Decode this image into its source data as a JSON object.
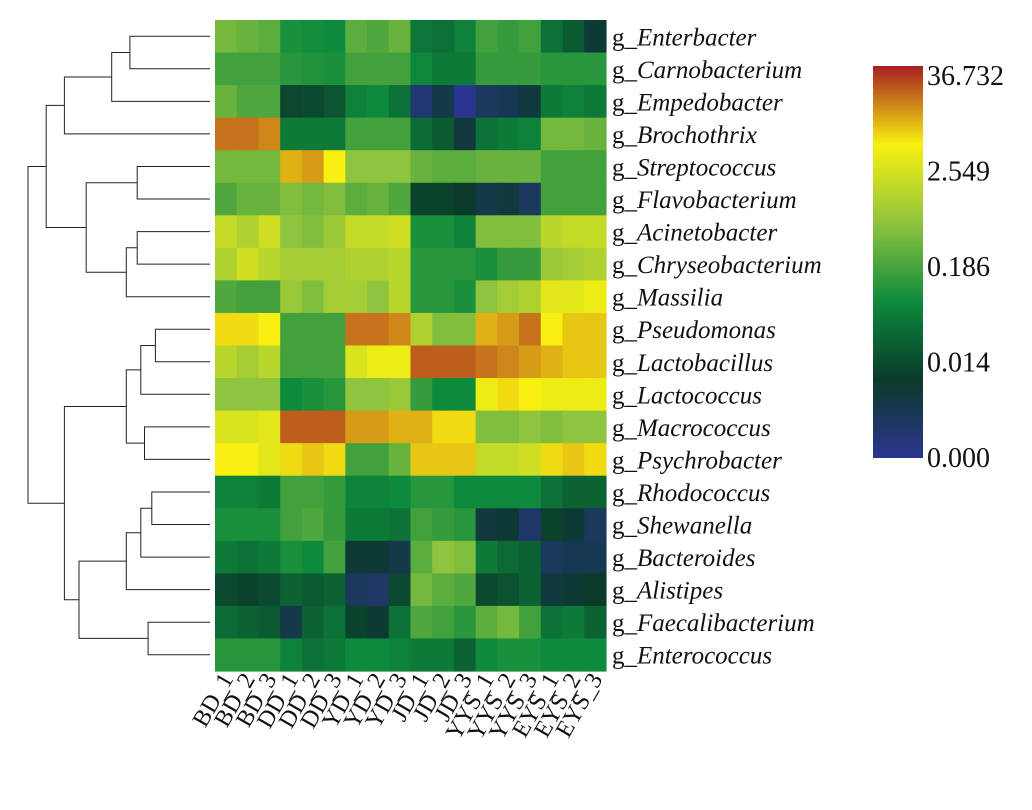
{
  "chart_data": {
    "type": "heatmap",
    "title": "",
    "xlabel": "",
    "ylabel": "",
    "columns": [
      "BD_1",
      "BD_2",
      "BD_3",
      "DD_1",
      "DD_2",
      "DD_3",
      "YD_1",
      "YD_2",
      "YD_3",
      "JD_1",
      "JD_2",
      "JD_3",
      "YYS_1",
      "YYS_2",
      "YYS_3",
      "EYS_1",
      "EYS_2",
      "EYS_3"
    ],
    "rows": [
      {
        "prefix": "g_",
        "genus": "Enterbacter"
      },
      {
        "prefix": "g_",
        "genus": "Carnobacterium"
      },
      {
        "prefix": "g_",
        "genus": "Empedobacter"
      },
      {
        "prefix": "g_",
        "genus": "Brochothrix"
      },
      {
        "prefix": "g_",
        "genus": "Streptococcus"
      },
      {
        "prefix": "g_",
        "genus": "Flavobacterium"
      },
      {
        "prefix": "g_",
        "genus": "Acinetobacter"
      },
      {
        "prefix": "g_",
        "genus": "Chryseobacterium"
      },
      {
        "prefix": "g_",
        "genus": "Massilia"
      },
      {
        "prefix": "g_",
        "genus": "Pseudomonas"
      },
      {
        "prefix": "g_",
        "genus": "Lactobacillus"
      },
      {
        "prefix": "g_",
        "genus": "Lactococcus"
      },
      {
        "prefix": "g_",
        "genus": "Macrococcus"
      },
      {
        "prefix": "g_",
        "genus": "Psychrobacter"
      },
      {
        "prefix": "g_",
        "genus": "Rhodococcus"
      },
      {
        "prefix": "g_",
        "genus": "Shewanella"
      },
      {
        "prefix": "g_",
        "genus": "Bacteroides"
      },
      {
        "prefix": "g_",
        "genus": "Alistipes"
      },
      {
        "prefix": "g_",
        "genus": "Faecalibacterium"
      },
      {
        "prefix": "g_",
        "genus": "Enterococcus"
      }
    ],
    "color_scale": {
      "ticks": [
        "36.732",
        "2.549",
        "0.186",
        "0.014",
        "0.000"
      ],
      "stops": [
        "#a51f22",
        "#f8f010",
        "#8fc43e",
        "#0e8a3c",
        "#0a3a2a",
        "#2b3590"
      ]
    },
    "values": [
      [
        0.56,
        0.54,
        0.52,
        0.42,
        0.41,
        0.4,
        0.52,
        0.5,
        0.54,
        0.35,
        0.33,
        0.38,
        0.48,
        0.46,
        0.48,
        0.34,
        0.28,
        0.18
      ],
      [
        0.48,
        0.48,
        0.48,
        0.44,
        0.43,
        0.42,
        0.48,
        0.48,
        0.48,
        0.39,
        0.36,
        0.36,
        0.46,
        0.46,
        0.46,
        0.44,
        0.44,
        0.44
      ],
      [
        0.54,
        0.5,
        0.5,
        0.23,
        0.24,
        0.27,
        0.38,
        0.4,
        0.34,
        0.06,
        0.14,
        0.0,
        0.1,
        0.12,
        0.16,
        0.36,
        0.38,
        0.36
      ],
      [
        0.92,
        0.92,
        0.9,
        0.36,
        0.36,
        0.36,
        0.48,
        0.48,
        0.48,
        0.32,
        0.28,
        0.16,
        0.34,
        0.36,
        0.38,
        0.56,
        0.56,
        0.54
      ],
      [
        0.56,
        0.56,
        0.56,
        0.86,
        0.88,
        0.8,
        0.6,
        0.6,
        0.6,
        0.54,
        0.52,
        0.52,
        0.54,
        0.54,
        0.54,
        0.48,
        0.48,
        0.48
      ],
      [
        0.5,
        0.54,
        0.54,
        0.58,
        0.56,
        0.58,
        0.52,
        0.54,
        0.5,
        0.22,
        0.22,
        0.2,
        0.14,
        0.16,
        0.1,
        0.48,
        0.48,
        0.48
      ],
      [
        0.7,
        0.66,
        0.72,
        0.6,
        0.58,
        0.62,
        0.7,
        0.7,
        0.72,
        0.42,
        0.42,
        0.38,
        0.58,
        0.58,
        0.58,
        0.68,
        0.7,
        0.7
      ],
      [
        0.66,
        0.72,
        0.68,
        0.64,
        0.64,
        0.64,
        0.66,
        0.66,
        0.68,
        0.44,
        0.44,
        0.44,
        0.42,
        0.46,
        0.46,
        0.62,
        0.64,
        0.66
      ],
      [
        0.5,
        0.48,
        0.48,
        0.62,
        0.58,
        0.64,
        0.64,
        0.6,
        0.68,
        0.44,
        0.44,
        0.42,
        0.6,
        0.64,
        0.66,
        0.76,
        0.76,
        0.78
      ],
      [
        0.82,
        0.82,
        0.8,
        0.48,
        0.48,
        0.48,
        0.92,
        0.92,
        0.9,
        0.66,
        0.58,
        0.58,
        0.86,
        0.88,
        0.92,
        0.8,
        0.84,
        0.84
      ],
      [
        0.68,
        0.64,
        0.68,
        0.48,
        0.48,
        0.48,
        0.74,
        0.78,
        0.78,
        0.94,
        0.94,
        0.94,
        0.92,
        0.9,
        0.88,
        0.86,
        0.84,
        0.84
      ],
      [
        0.6,
        0.6,
        0.6,
        0.4,
        0.42,
        0.44,
        0.6,
        0.6,
        0.62,
        0.46,
        0.4,
        0.4,
        0.78,
        0.82,
        0.8,
        0.78,
        0.78,
        0.78
      ],
      [
        0.74,
        0.74,
        0.76,
        0.94,
        0.94,
        0.94,
        0.88,
        0.88,
        0.86,
        0.86,
        0.82,
        0.82,
        0.58,
        0.58,
        0.6,
        0.58,
        0.6,
        0.6
      ],
      [
        0.8,
        0.8,
        0.76,
        0.82,
        0.84,
        0.82,
        0.48,
        0.48,
        0.54,
        0.84,
        0.84,
        0.84,
        0.7,
        0.7,
        0.72,
        0.82,
        0.84,
        0.82
      ],
      [
        0.38,
        0.38,
        0.36,
        0.48,
        0.48,
        0.46,
        0.38,
        0.38,
        0.4,
        0.44,
        0.44,
        0.4,
        0.4,
        0.4,
        0.4,
        0.34,
        0.3,
        0.3
      ],
      [
        0.42,
        0.42,
        0.42,
        0.48,
        0.5,
        0.46,
        0.36,
        0.36,
        0.34,
        0.48,
        0.46,
        0.44,
        0.16,
        0.18,
        0.08,
        0.22,
        0.18,
        0.1
      ],
      [
        0.36,
        0.34,
        0.36,
        0.42,
        0.4,
        0.48,
        0.18,
        0.18,
        0.14,
        0.52,
        0.6,
        0.58,
        0.36,
        0.32,
        0.3,
        0.1,
        0.12,
        0.12
      ],
      [
        0.24,
        0.22,
        0.24,
        0.3,
        0.28,
        0.3,
        0.1,
        0.08,
        0.24,
        0.56,
        0.52,
        0.5,
        0.24,
        0.26,
        0.3,
        0.16,
        0.18,
        0.2
      ],
      [
        0.32,
        0.3,
        0.28,
        0.14,
        0.3,
        0.34,
        0.22,
        0.18,
        0.34,
        0.5,
        0.48,
        0.44,
        0.52,
        0.56,
        0.48,
        0.34,
        0.36,
        0.3
      ],
      [
        0.44,
        0.44,
        0.44,
        0.38,
        0.34,
        0.36,
        0.4,
        0.4,
        0.38,
        0.36,
        0.36,
        0.3,
        0.4,
        0.42,
        0.42,
        0.4,
        0.4,
        0.4
      ]
    ],
    "dendrogram": {
      "merges": [
        [
          0,
          1,
          0.44
        ],
        [
          20,
          2,
          0.54
        ],
        [
          21,
          3,
          0.8
        ],
        [
          4,
          5,
          0.4
        ],
        [
          6,
          7,
          0.4
        ],
        [
          24,
          8,
          0.46
        ],
        [
          23,
          25,
          0.68
        ],
        [
          22,
          26,
          0.9
        ],
        [
          9,
          10,
          0.3
        ],
        [
          28,
          11,
          0.38
        ],
        [
          12,
          13,
          0.36
        ],
        [
          29,
          30,
          0.46
        ],
        [
          14,
          15,
          0.32
        ],
        [
          32,
          16,
          0.38
        ],
        [
          33,
          17,
          0.46
        ],
        [
          18,
          19,
          0.34
        ],
        [
          34,
          35,
          0.72
        ],
        [
          31,
          36,
          0.8
        ],
        [
          27,
          37,
          1.0
        ]
      ]
    }
  }
}
